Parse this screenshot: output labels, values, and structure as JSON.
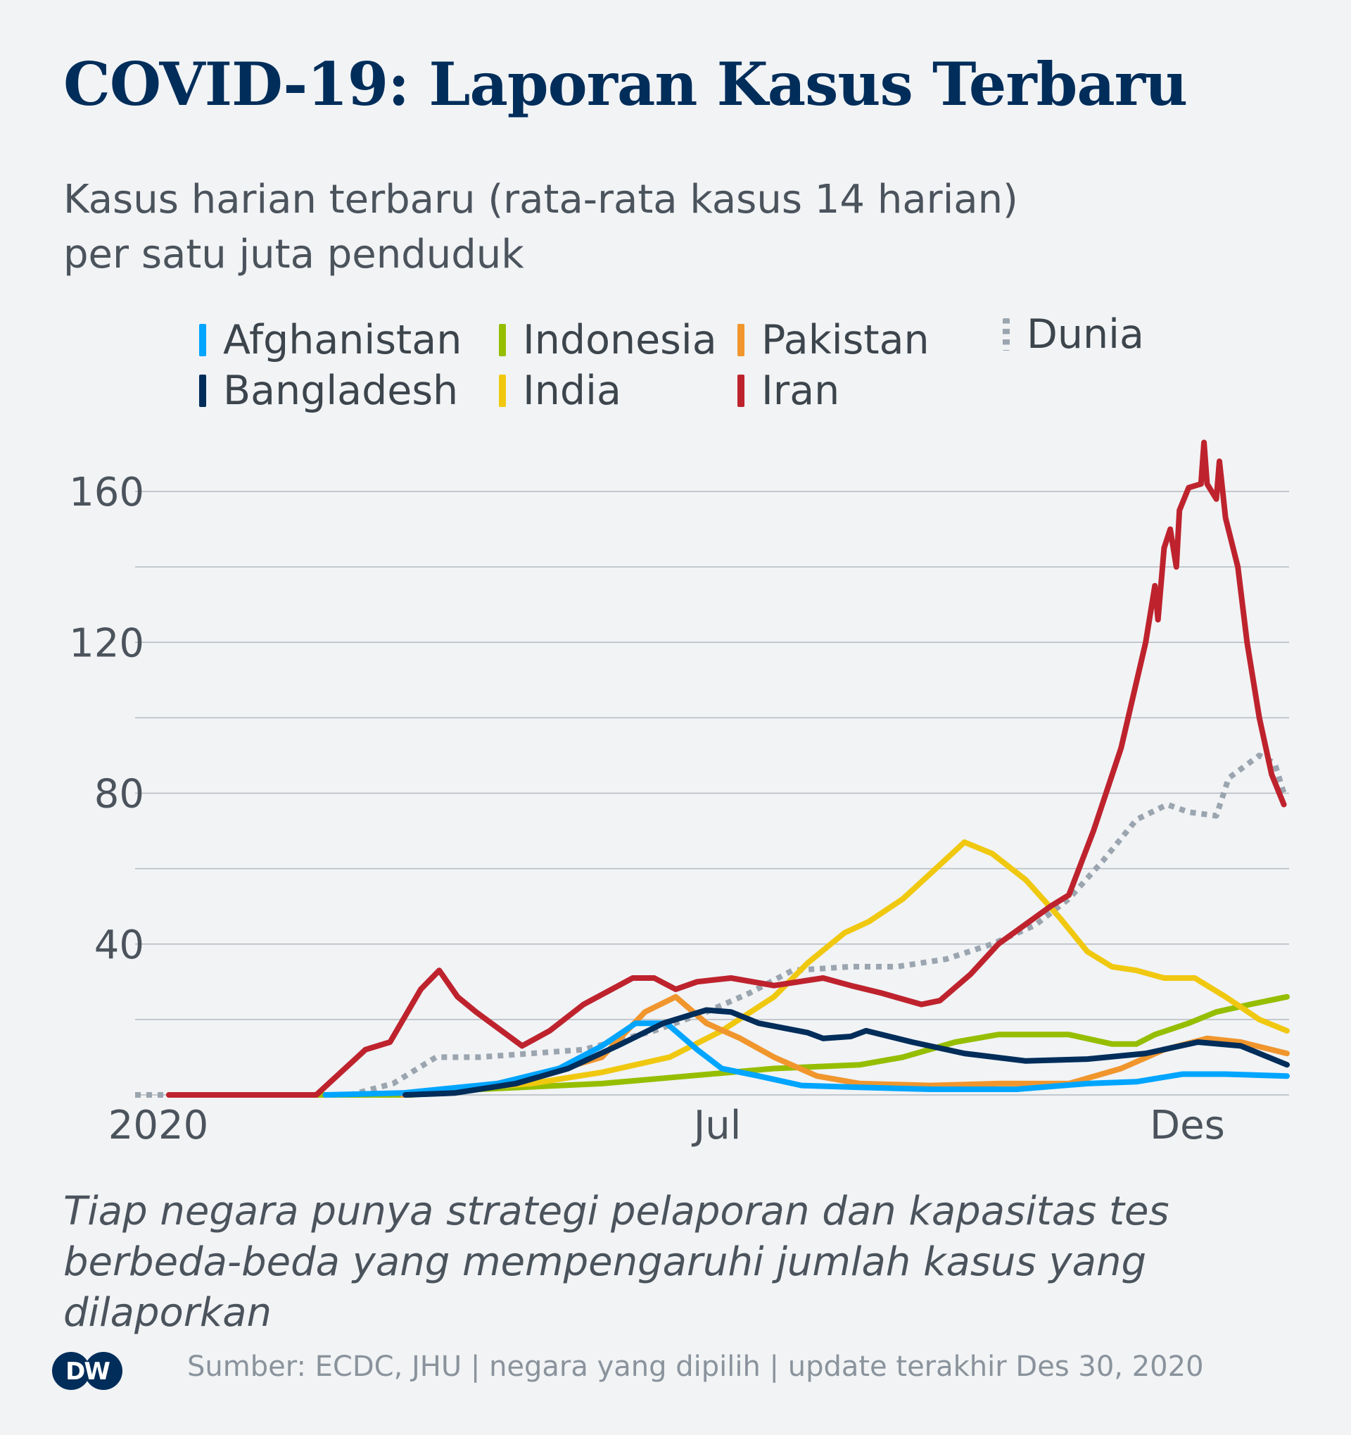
{
  "title": "COVID-19: Laporan Kasus Terbaru",
  "subtitle_line1": "Kasus harian terbaru (rata-rata kasus 14 harian)",
  "subtitle_line2": "per satu juta penduduk",
  "note_line1": "Tiap negara punya strategi pelaporan dan kapasitas tes",
  "note_line2": "berbeda-beda yang mempengaruhi jumlah kasus yang dilaporkan",
  "source": "Sumber: ECDC, JHU | negara yang dipilih | update terakhir Des 30, 2020",
  "logo": "DW",
  "chart_data": {
    "type": "line",
    "title": "COVID-19: Laporan Kasus Terbaru",
    "ylabel": "",
    "xlabel": "",
    "ylim": [
      0,
      160
    ],
    "xlim": [
      "2020-01-01",
      "2020-12-30"
    ],
    "yticks": [
      0,
      20,
      40,
      60,
      80,
      100,
      120,
      140,
      160
    ],
    "ytick_labels": [
      {
        "v": 40,
        "label": "40"
      },
      {
        "v": 80,
        "label": "80"
      },
      {
        "v": 120,
        "label": "120"
      },
      {
        "v": 160,
        "label": "160"
      }
    ],
    "xtick_labels": [
      {
        "date": "2020-01-01",
        "label": "2020"
      },
      {
        "date": "2020-07-01",
        "label": "Jul"
      },
      {
        "date": "2020-12-01",
        "label": "Des"
      }
    ],
    "grid": true,
    "legend_position": "top",
    "series": [
      {
        "name": "Afghanistan",
        "color": "#00a5ff",
        "style": "solid",
        "points": [
          [
            "2020-02-21",
            0
          ],
          [
            "2020-03-17",
            0.5
          ],
          [
            "2020-04-17",
            3
          ],
          [
            "2020-05-07",
            7
          ],
          [
            "2020-05-21",
            13
          ],
          [
            "2020-06-01",
            19
          ],
          [
            "2020-06-11",
            19
          ],
          [
            "2020-06-21",
            12
          ],
          [
            "2020-06-29",
            7
          ],
          [
            "2020-07-11",
            5
          ],
          [
            "2020-07-25",
            2.5
          ],
          [
            "2020-08-13",
            2
          ],
          [
            "2020-09-05",
            1.5
          ],
          [
            "2020-10-03",
            1.5
          ],
          [
            "2020-10-26",
            3
          ],
          [
            "2020-11-11",
            3.5
          ],
          [
            "2020-11-26",
            5.5
          ],
          [
            "2020-12-10",
            5.5
          ],
          [
            "2020-12-30",
            5
          ]
        ]
      },
      {
        "name": "Bangladesh",
        "color": "#002d5a",
        "style": "solid",
        "points": [
          [
            "2020-03-18",
            0
          ],
          [
            "2020-04-03",
            0.5
          ],
          [
            "2020-04-23",
            3
          ],
          [
            "2020-05-10",
            7
          ],
          [
            "2020-05-26",
            13
          ],
          [
            "2020-06-10",
            19
          ],
          [
            "2020-06-24",
            22.5
          ],
          [
            "2020-07-02",
            22
          ],
          [
            "2020-07-11",
            19
          ],
          [
            "2020-07-27",
            16.5
          ],
          [
            "2020-08-01",
            15
          ],
          [
            "2020-08-10",
            15.5
          ],
          [
            "2020-08-15",
            17
          ],
          [
            "2020-08-30",
            14
          ],
          [
            "2020-09-16",
            11
          ],
          [
            "2020-10-06",
            9
          ],
          [
            "2020-10-26",
            9.5
          ],
          [
            "2020-11-14",
            11
          ],
          [
            "2020-12-01",
            14
          ],
          [
            "2020-12-15",
            13
          ],
          [
            "2020-12-30",
            8
          ]
        ]
      },
      {
        "name": "Indonesia",
        "color": "#96be00",
        "style": "solid",
        "points": [
          [
            "2020-01-01",
            0
          ],
          [
            "2020-03-20",
            0
          ],
          [
            "2020-04-11",
            1.5
          ],
          [
            "2020-05-21",
            3
          ],
          [
            "2020-06-18",
            5
          ],
          [
            "2020-07-16",
            7
          ],
          [
            "2020-08-13",
            8
          ],
          [
            "2020-08-27",
            10
          ],
          [
            "2020-09-13",
            14
          ],
          [
            "2020-09-27",
            16
          ],
          [
            "2020-10-20",
            16
          ],
          [
            "2020-11-03",
            13.5
          ],
          [
            "2020-11-11",
            13.5
          ],
          [
            "2020-11-17",
            16
          ],
          [
            "2020-11-28",
            19
          ],
          [
            "2020-12-07",
            22
          ],
          [
            "2020-12-18",
            24
          ],
          [
            "2020-12-30",
            26
          ]
        ]
      },
      {
        "name": "India",
        "color": "#f0c80f",
        "style": "solid",
        "points": [
          [
            "2020-03-20",
            0.5
          ],
          [
            "2020-04-28",
            3
          ],
          [
            "2020-05-21",
            6
          ],
          [
            "2020-06-12",
            10
          ],
          [
            "2020-06-29",
            17
          ],
          [
            "2020-07-16",
            26
          ],
          [
            "2020-07-27",
            35
          ],
          [
            "2020-08-08",
            43
          ],
          [
            "2020-08-16",
            46
          ],
          [
            "2020-08-27",
            52
          ],
          [
            "2020-09-08",
            61
          ],
          [
            "2020-09-16",
            67
          ],
          [
            "2020-09-25",
            64
          ],
          [
            "2020-10-06",
            57
          ],
          [
            "2020-10-17",
            47
          ],
          [
            "2020-10-26",
            38
          ],
          [
            "2020-11-03",
            34
          ],
          [
            "2020-11-11",
            33
          ],
          [
            "2020-11-20",
            31
          ],
          [
            "2020-11-30",
            31
          ],
          [
            "2020-12-10",
            26
          ],
          [
            "2020-12-21",
            20
          ],
          [
            "2020-12-30",
            17
          ]
        ]
      },
      {
        "name": "Pakistan",
        "color": "#f0962d",
        "style": "solid",
        "points": [
          [
            "2020-03-17",
            0
          ],
          [
            "2020-04-11",
            2
          ],
          [
            "2020-05-04",
            6
          ],
          [
            "2020-05-21",
            10
          ],
          [
            "2020-06-04",
            22
          ],
          [
            "2020-06-14",
            26
          ],
          [
            "2020-06-24",
            19
          ],
          [
            "2020-07-05",
            15
          ],
          [
            "2020-07-16",
            10
          ],
          [
            "2020-07-30",
            5
          ],
          [
            "2020-08-13",
            3
          ],
          [
            "2020-09-05",
            2.5
          ],
          [
            "2020-09-27",
            3
          ],
          [
            "2020-10-20",
            3
          ],
          [
            "2020-11-06",
            7
          ],
          [
            "2020-11-20",
            12
          ],
          [
            "2020-12-04",
            15
          ],
          [
            "2020-12-15",
            14
          ],
          [
            "2020-12-30",
            11
          ]
        ]
      },
      {
        "name": "Iran",
        "color": "#be232d",
        "style": "solid",
        "points": [
          [
            "2020-01-01",
            0
          ],
          [
            "2020-02-18",
            0
          ],
          [
            "2020-03-05",
            12
          ],
          [
            "2020-03-13",
            14
          ],
          [
            "2020-03-23",
            28
          ],
          [
            "2020-03-29",
            33
          ],
          [
            "2020-04-04",
            26
          ],
          [
            "2020-04-10",
            22
          ],
          [
            "2020-04-25",
            13
          ],
          [
            "2020-05-04",
            17
          ],
          [
            "2020-05-15",
            24
          ],
          [
            "2020-05-31",
            31
          ],
          [
            "2020-06-07",
            31
          ],
          [
            "2020-06-14",
            28
          ],
          [
            "2020-06-21",
            30
          ],
          [
            "2020-07-02",
            31
          ],
          [
            "2020-07-16",
            29
          ],
          [
            "2020-08-01",
            31
          ],
          [
            "2020-08-10",
            29
          ],
          [
            "2020-08-20",
            27
          ],
          [
            "2020-09-02",
            24
          ],
          [
            "2020-09-08",
            25
          ],
          [
            "2020-09-18",
            32
          ],
          [
            "2020-09-27",
            40
          ],
          [
            "2020-10-14",
            50
          ],
          [
            "2020-10-20",
            53
          ],
          [
            "2020-10-28",
            70
          ],
          [
            "2020-11-06",
            92
          ],
          [
            "2020-11-14",
            120
          ],
          [
            "2020-11-17",
            135
          ],
          [
            "2020-11-18",
            126
          ],
          [
            "2020-11-20",
            145
          ],
          [
            "2020-11-22",
            150
          ],
          [
            "2020-11-24",
            140
          ],
          [
            "2020-11-25",
            155
          ],
          [
            "2020-11-28",
            161
          ],
          [
            "2020-12-02",
            162
          ],
          [
            "2020-12-03",
            173
          ],
          [
            "2020-12-04",
            162
          ],
          [
            "2020-12-07",
            158
          ],
          [
            "2020-12-08",
            168
          ],
          [
            "2020-12-10",
            153
          ],
          [
            "2020-12-14",
            140
          ],
          [
            "2020-12-17",
            120
          ],
          [
            "2020-12-21",
            100
          ],
          [
            "2020-12-25",
            85
          ],
          [
            "2020-12-29",
            77
          ]
        ]
      },
      {
        "name": "Dunia",
        "color": "#9ba5af",
        "style": "dotted",
        "points": [
          [
            "2019-12-21",
            0
          ],
          [
            "2020-02-29",
            0
          ],
          [
            "2020-03-14",
            3
          ],
          [
            "2020-03-28",
            10
          ],
          [
            "2020-04-11",
            10
          ],
          [
            "2020-04-28",
            11
          ],
          [
            "2020-05-15",
            12
          ],
          [
            "2020-06-07",
            17
          ],
          [
            "2020-06-24",
            22
          ],
          [
            "2020-07-08",
            27
          ],
          [
            "2020-07-22",
            33
          ],
          [
            "2020-08-10",
            34
          ],
          [
            "2020-08-25",
            34
          ],
          [
            "2020-09-10",
            36
          ],
          [
            "2020-09-25",
            40
          ],
          [
            "2020-10-09",
            45
          ],
          [
            "2020-10-20",
            52
          ],
          [
            "2020-10-31",
            62
          ],
          [
            "2020-11-11",
            73
          ],
          [
            "2020-11-21",
            77
          ],
          [
            "2020-11-28",
            75
          ],
          [
            "2020-12-07",
            74
          ],
          [
            "2020-12-11",
            84
          ],
          [
            "2020-12-21",
            90
          ],
          [
            "2020-12-26",
            88
          ],
          [
            "2020-12-29",
            80
          ]
        ]
      }
    ]
  },
  "legend": [
    {
      "label": "Afghanistan",
      "color": "#00a5ff"
    },
    {
      "label": "Bangladesh",
      "color": "#002d5a"
    },
    {
      "label": "Indonesia",
      "color": "#96be00"
    },
    {
      "label": "India",
      "color": "#f0c80f"
    },
    {
      "label": "Pakistan",
      "color": "#f0962d"
    },
    {
      "label": "Iran",
      "color": "#be232d"
    },
    {
      "label": "Dunia",
      "color": "#9ba5af"
    }
  ]
}
